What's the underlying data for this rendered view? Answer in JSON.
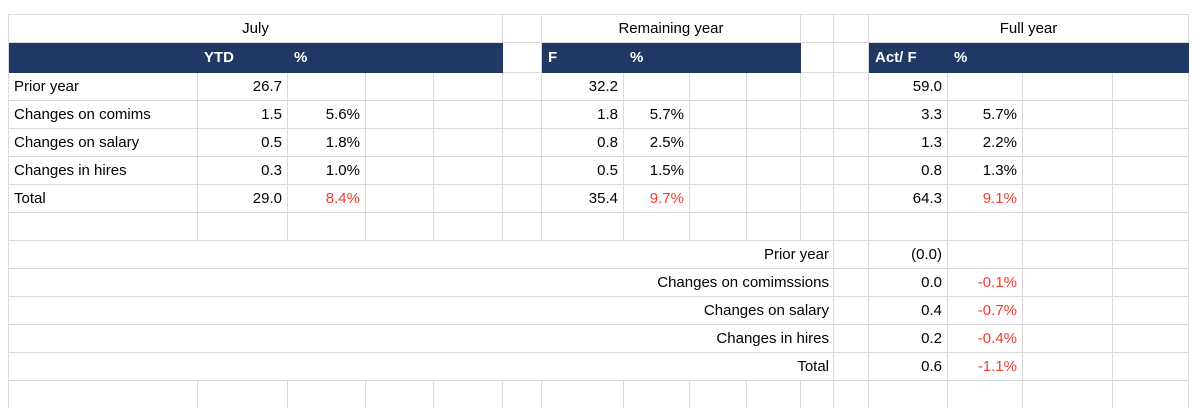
{
  "colors": {
    "header_bg": "#1f3864",
    "negative_text": "#f43b2d",
    "grid_line": "#d9d9d9"
  },
  "sections": [
    {
      "title": "July",
      "value_header": "YTD",
      "pct_header": "%"
    },
    {
      "title": "Remaining year",
      "value_header": "F",
      "pct_header": "%"
    },
    {
      "title": "Full year",
      "value_header": "Act/ F",
      "pct_header": "%"
    }
  ],
  "main_rows": [
    {
      "label": "Prior year",
      "july_value": "26.7",
      "july_pct": "",
      "remaining_value": "32.2",
      "remaining_pct": "",
      "full_value": "59.0",
      "full_pct": "",
      "is_total": false
    },
    {
      "label": "Changes on comims",
      "july_value": "1.5",
      "july_pct": "5.6%",
      "remaining_value": "1.8",
      "remaining_pct": "5.7%",
      "full_value": "3.3",
      "full_pct": "5.7%",
      "is_total": false
    },
    {
      "label": "Changes on salary",
      "july_value": "0.5",
      "july_pct": "1.8%",
      "remaining_value": "0.8",
      "remaining_pct": "2.5%",
      "full_value": "1.3",
      "full_pct": "2.2%",
      "is_total": false
    },
    {
      "label": "Changes in hires",
      "july_value": "0.3",
      "july_pct": "1.0%",
      "remaining_value": "0.5",
      "remaining_pct": "1.5%",
      "full_value": "0.8",
      "full_pct": "1.3%",
      "is_total": false
    },
    {
      "label": "Total",
      "july_value": "29.0",
      "july_pct": "8.4%",
      "remaining_value": "35.4",
      "remaining_pct": "9.7%",
      "full_value": "64.3",
      "full_pct": "9.1%",
      "is_total": true
    }
  ],
  "adjustment_rows": [
    {
      "label": "Prior year",
      "value": "(0.0)",
      "pct": ""
    },
    {
      "label": "Changes on comimssions",
      "value": "0.0",
      "pct": "-0.1%"
    },
    {
      "label": "Changes on salary",
      "value": "0.4",
      "pct": "-0.7%"
    },
    {
      "label": "Changes in hires",
      "value": "0.2",
      "pct": "-0.4%"
    },
    {
      "label": "Total",
      "value": "0.6",
      "pct": "-1.1%"
    }
  ]
}
